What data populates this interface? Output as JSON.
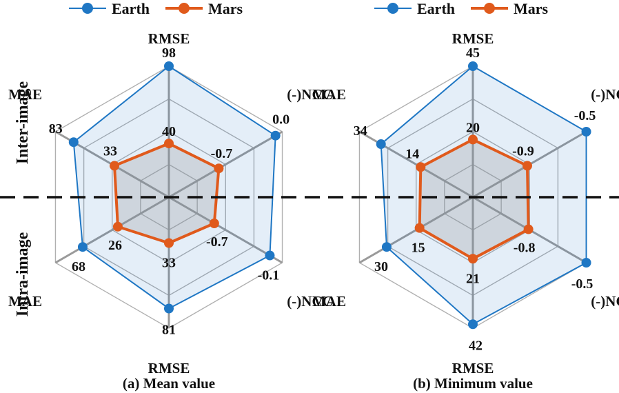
{
  "legend": [
    {
      "name": "Earth",
      "color": "#1f77c4"
    },
    {
      "name": "Mars",
      "color": "#e05a1c"
    }
  ],
  "section_labels": {
    "top": "Inter-image",
    "bottom": "Intra-image"
  },
  "chart_data": [
    {
      "type": "radar",
      "caption": "(a) Mean value",
      "axes": [
        "RMSE",
        "(-)NCC",
        "(-)NCC",
        "RMSE",
        "MAE",
        "MAE"
      ],
      "groups": [
        "Inter-image",
        "Inter-image",
        "Intra-image",
        "Intra-image",
        "Intra-image",
        "Inter-image"
      ],
      "series": [
        {
          "name": "Earth",
          "values": [
            98,
            0.0,
            -0.1,
            81,
            68,
            83
          ],
          "labels": [
            "98",
            "0.0",
            "-0.1",
            "81",
            "68",
            "83"
          ],
          "radius_fraction": [
            1.0,
            0.94,
            0.89,
            0.85,
            0.76,
            0.84
          ]
        },
        {
          "name": "Mars",
          "values": [
            40,
            -0.7,
            -0.7,
            33,
            26,
            33
          ],
          "labels": [
            "40",
            "-0.7",
            "-0.7",
            "33",
            "26",
            "33"
          ],
          "radius_fraction": [
            0.41,
            0.44,
            0.4,
            0.35,
            0.45,
            0.48
          ]
        }
      ],
      "grid": true,
      "legend_position": "top"
    },
    {
      "type": "radar",
      "caption": "(b) Minimum value",
      "axes": [
        "RMSE",
        "(-)NCC",
        "(-)NCC",
        "RMSE",
        "MAE",
        "MAE"
      ],
      "groups": [
        "Inter-image",
        "Inter-image",
        "Intra-image",
        "Intra-image",
        "Intra-image",
        "Inter-image"
      ],
      "series": [
        {
          "name": "Earth",
          "values": [
            45,
            -0.5,
            -0.5,
            42,
            30,
            34
          ],
          "labels": [
            "45",
            "-0.5",
            "-0.5",
            "42",
            "30",
            "34"
          ],
          "radius_fraction": [
            1.0,
            1.0,
            1.0,
            0.97,
            0.76,
            0.81
          ]
        },
        {
          "name": "Mars",
          "values": [
            20,
            -0.9,
            -0.8,
            21,
            15,
            14
          ],
          "labels": [
            "20",
            "-0.9",
            "-0.8",
            "21",
            "15",
            "14"
          ],
          "radius_fraction": [
            0.44,
            0.48,
            0.49,
            0.47,
            0.47,
            0.46
          ]
        }
      ],
      "grid": true,
      "legend_position": "top"
    }
  ]
}
